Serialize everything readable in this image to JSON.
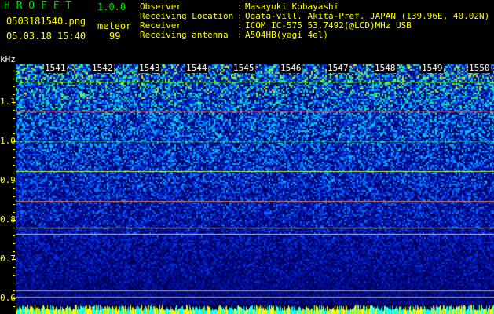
{
  "header": {
    "logo": "H R O F F T",
    "version": "1.0.0",
    "filename": "0503181540.png",
    "datetime": "05.03.18 15:40",
    "meteor_label": "meteor",
    "meteor_count": "99",
    "info": [
      {
        "label": "Observer",
        "value": "Masayuki Kobayashi"
      },
      {
        "label": "Receiving Location",
        "value": "Ogata-vill. Akita-Pref. JAPAN (139.96E, 40.02N)"
      },
      {
        "label": "Receiver",
        "value": "ICOM IC-575 53.7492(@LCD)MHz USB"
      },
      {
        "label": "Receiving antenna",
        "value": "A504HB(yagi 4el)"
      }
    ]
  },
  "spectrogram": {
    "y_unit": "kHz",
    "y_ticks": [
      "1.1",
      "1.0",
      "0.9",
      "0.8",
      "0.7",
      "0.6"
    ],
    "time_labels": [
      "1541",
      "1542",
      "1543",
      "1544",
      "1545",
      "1546",
      "1547",
      "1548",
      "1549",
      "1550"
    ],
    "colors": {
      "text": "#ffff00",
      "logo": "#00e000",
      "minute_label": "#ffffff"
    }
  }
}
